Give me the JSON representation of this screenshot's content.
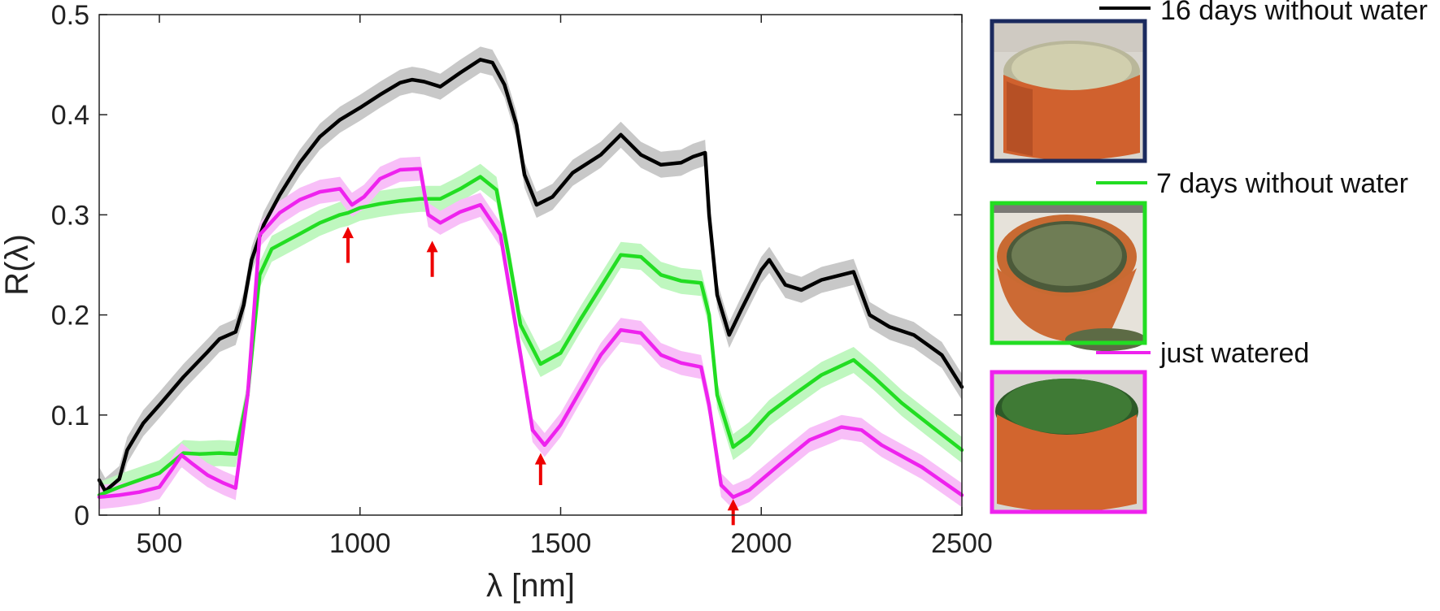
{
  "chart_data": {
    "type": "line",
    "xlabel": "λ [nm]",
    "ylabel": "R(λ)",
    "xlim": [
      350,
      2500
    ],
    "ylim": [
      0,
      0.5
    ],
    "xticks": [
      500,
      1000,
      1500,
      2000,
      2500
    ],
    "yticks": [
      0,
      0.1,
      0.2,
      0.3,
      0.4,
      0.5
    ],
    "grid": false,
    "legend_position": "right",
    "series": [
      {
        "name": "16 days without water",
        "color": "#000000",
        "band_color": "#c8c8c8",
        "band": 0.013,
        "points": [
          [
            350,
            0.035
          ],
          [
            365,
            0.024
          ],
          [
            400,
            0.036
          ],
          [
            420,
            0.065
          ],
          [
            460,
            0.092
          ],
          [
            500,
            0.11
          ],
          [
            560,
            0.138
          ],
          [
            620,
            0.163
          ],
          [
            650,
            0.176
          ],
          [
            690,
            0.183
          ],
          [
            710,
            0.21
          ],
          [
            730,
            0.255
          ],
          [
            760,
            0.29
          ],
          [
            800,
            0.32
          ],
          [
            850,
            0.352
          ],
          [
            900,
            0.378
          ],
          [
            950,
            0.395
          ],
          [
            1000,
            0.407
          ],
          [
            1050,
            0.42
          ],
          [
            1100,
            0.432
          ],
          [
            1130,
            0.435
          ],
          [
            1160,
            0.433
          ],
          [
            1200,
            0.428
          ],
          [
            1250,
            0.442
          ],
          [
            1300,
            0.455
          ],
          [
            1330,
            0.452
          ],
          [
            1360,
            0.43
          ],
          [
            1390,
            0.39
          ],
          [
            1410,
            0.34
          ],
          [
            1440,
            0.31
          ],
          [
            1480,
            0.318
          ],
          [
            1530,
            0.342
          ],
          [
            1600,
            0.36
          ],
          [
            1650,
            0.38
          ],
          [
            1700,
            0.36
          ],
          [
            1750,
            0.35
          ],
          [
            1800,
            0.352
          ],
          [
            1830,
            0.358
          ],
          [
            1860,
            0.362
          ],
          [
            1870,
            0.3
          ],
          [
            1890,
            0.22
          ],
          [
            1920,
            0.18
          ],
          [
            1950,
            0.205
          ],
          [
            2000,
            0.245
          ],
          [
            2020,
            0.255
          ],
          [
            2060,
            0.23
          ],
          [
            2100,
            0.225
          ],
          [
            2150,
            0.235
          ],
          [
            2230,
            0.243
          ],
          [
            2270,
            0.2
          ],
          [
            2320,
            0.188
          ],
          [
            2380,
            0.18
          ],
          [
            2450,
            0.16
          ],
          [
            2500,
            0.128
          ]
        ]
      },
      {
        "name": "7 days without water",
        "color": "#22dd22",
        "band_color": "#bff7bf",
        "band": 0.013,
        "points": [
          [
            350,
            0.02
          ],
          [
            400,
            0.028
          ],
          [
            450,
            0.035
          ],
          [
            500,
            0.042
          ],
          [
            530,
            0.052
          ],
          [
            560,
            0.062
          ],
          [
            600,
            0.061
          ],
          [
            650,
            0.062
          ],
          [
            690,
            0.061
          ],
          [
            720,
            0.12
          ],
          [
            750,
            0.24
          ],
          [
            780,
            0.266
          ],
          [
            850,
            0.281
          ],
          [
            900,
            0.292
          ],
          [
            950,
            0.3
          ],
          [
            970,
            0.302
          ],
          [
            1000,
            0.307
          ],
          [
            1050,
            0.311
          ],
          [
            1100,
            0.314
          ],
          [
            1150,
            0.316
          ],
          [
            1200,
            0.316
          ],
          [
            1250,
            0.326
          ],
          [
            1300,
            0.338
          ],
          [
            1340,
            0.325
          ],
          [
            1370,
            0.26
          ],
          [
            1400,
            0.19
          ],
          [
            1450,
            0.151
          ],
          [
            1500,
            0.162
          ],
          [
            1550,
            0.196
          ],
          [
            1600,
            0.228
          ],
          [
            1650,
            0.26
          ],
          [
            1700,
            0.258
          ],
          [
            1750,
            0.24
          ],
          [
            1800,
            0.234
          ],
          [
            1850,
            0.232
          ],
          [
            1870,
            0.2
          ],
          [
            1890,
            0.12
          ],
          [
            1930,
            0.068
          ],
          [
            1970,
            0.08
          ],
          [
            2020,
            0.102
          ],
          [
            2080,
            0.12
          ],
          [
            2150,
            0.14
          ],
          [
            2230,
            0.155
          ],
          [
            2280,
            0.138
          ],
          [
            2350,
            0.112
          ],
          [
            2420,
            0.09
          ],
          [
            2500,
            0.065
          ]
        ]
      },
      {
        "name": "just watered",
        "color": "#ee22ee",
        "band_color": "#f8bff8",
        "band": 0.012,
        "points": [
          [
            350,
            0.018
          ],
          [
            400,
            0.02
          ],
          [
            450,
            0.023
          ],
          [
            500,
            0.028
          ],
          [
            530,
            0.045
          ],
          [
            555,
            0.06
          ],
          [
            580,
            0.052
          ],
          [
            620,
            0.04
          ],
          [
            660,
            0.032
          ],
          [
            690,
            0.027
          ],
          [
            720,
            0.12
          ],
          [
            750,
            0.28
          ],
          [
            800,
            0.302
          ],
          [
            850,
            0.315
          ],
          [
            900,
            0.323
          ],
          [
            950,
            0.326
          ],
          [
            980,
            0.31
          ],
          [
            1010,
            0.318
          ],
          [
            1050,
            0.336
          ],
          [
            1100,
            0.345
          ],
          [
            1150,
            0.346
          ],
          [
            1170,
            0.3
          ],
          [
            1200,
            0.292
          ],
          [
            1250,
            0.303
          ],
          [
            1300,
            0.31
          ],
          [
            1350,
            0.28
          ],
          [
            1400,
            0.16
          ],
          [
            1430,
            0.085
          ],
          [
            1460,
            0.07
          ],
          [
            1500,
            0.09
          ],
          [
            1550,
            0.125
          ],
          [
            1600,
            0.16
          ],
          [
            1650,
            0.185
          ],
          [
            1700,
            0.182
          ],
          [
            1750,
            0.16
          ],
          [
            1800,
            0.152
          ],
          [
            1850,
            0.148
          ],
          [
            1870,
            0.11
          ],
          [
            1900,
            0.03
          ],
          [
            1930,
            0.018
          ],
          [
            1970,
            0.025
          ],
          [
            2050,
            0.052
          ],
          [
            2120,
            0.075
          ],
          [
            2200,
            0.088
          ],
          [
            2250,
            0.085
          ],
          [
            2300,
            0.07
          ],
          [
            2400,
            0.048
          ],
          [
            2500,
            0.02
          ]
        ]
      }
    ],
    "annotations": [
      {
        "type": "arrow",
        "color": "#ee0000",
        "x": 970,
        "y_tail": 0.252,
        "y_head": 0.288
      },
      {
        "type": "arrow",
        "color": "#ee0000",
        "x": 1180,
        "y_tail": 0.238,
        "y_head": 0.274
      },
      {
        "type": "arrow",
        "color": "#ee0000",
        "x": 1450,
        "y_tail": 0.03,
        "y_head": 0.062
      },
      {
        "type": "arrow",
        "color": "#ee0000",
        "x": 1930,
        "y_tail": -0.01,
        "y_head": 0.016
      }
    ]
  },
  "legend": {
    "items": [
      {
        "label": "16 days without water",
        "color": "#000000",
        "photo": "dry-grass-pot",
        "frame_color": "#1b2a5e"
      },
      {
        "label": "7 days without water",
        "color": "#22dd22",
        "photo": "drying-grass-pot",
        "frame_color": "#22dd22"
      },
      {
        "label": "just watered",
        "color": "#ee22ee",
        "photo": "green-grass-pot",
        "frame_color": "#ee22ee"
      }
    ]
  }
}
